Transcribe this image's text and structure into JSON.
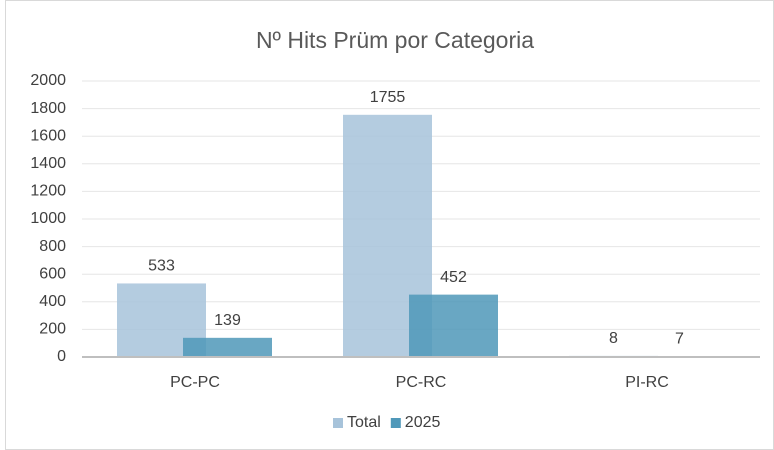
{
  "chart_data": {
    "type": "bar",
    "title": "Nº Hits Prüm por Categoria",
    "categories": [
      "PC-PC",
      "PC-RC",
      "PI-RC"
    ],
    "series": [
      {
        "name": "Total",
        "color": "#a7c3da",
        "values": [
          533,
          1755,
          8
        ]
      },
      {
        "name": "2025",
        "color": "#4f98b9",
        "values": [
          139,
          452,
          7
        ]
      }
    ],
    "ylim": [
      0,
      2000
    ],
    "yticks": [
      0,
      200,
      400,
      600,
      800,
      1000,
      1200,
      1400,
      1600,
      1800,
      2000
    ],
    "grid": true,
    "legend": "bottom"
  }
}
